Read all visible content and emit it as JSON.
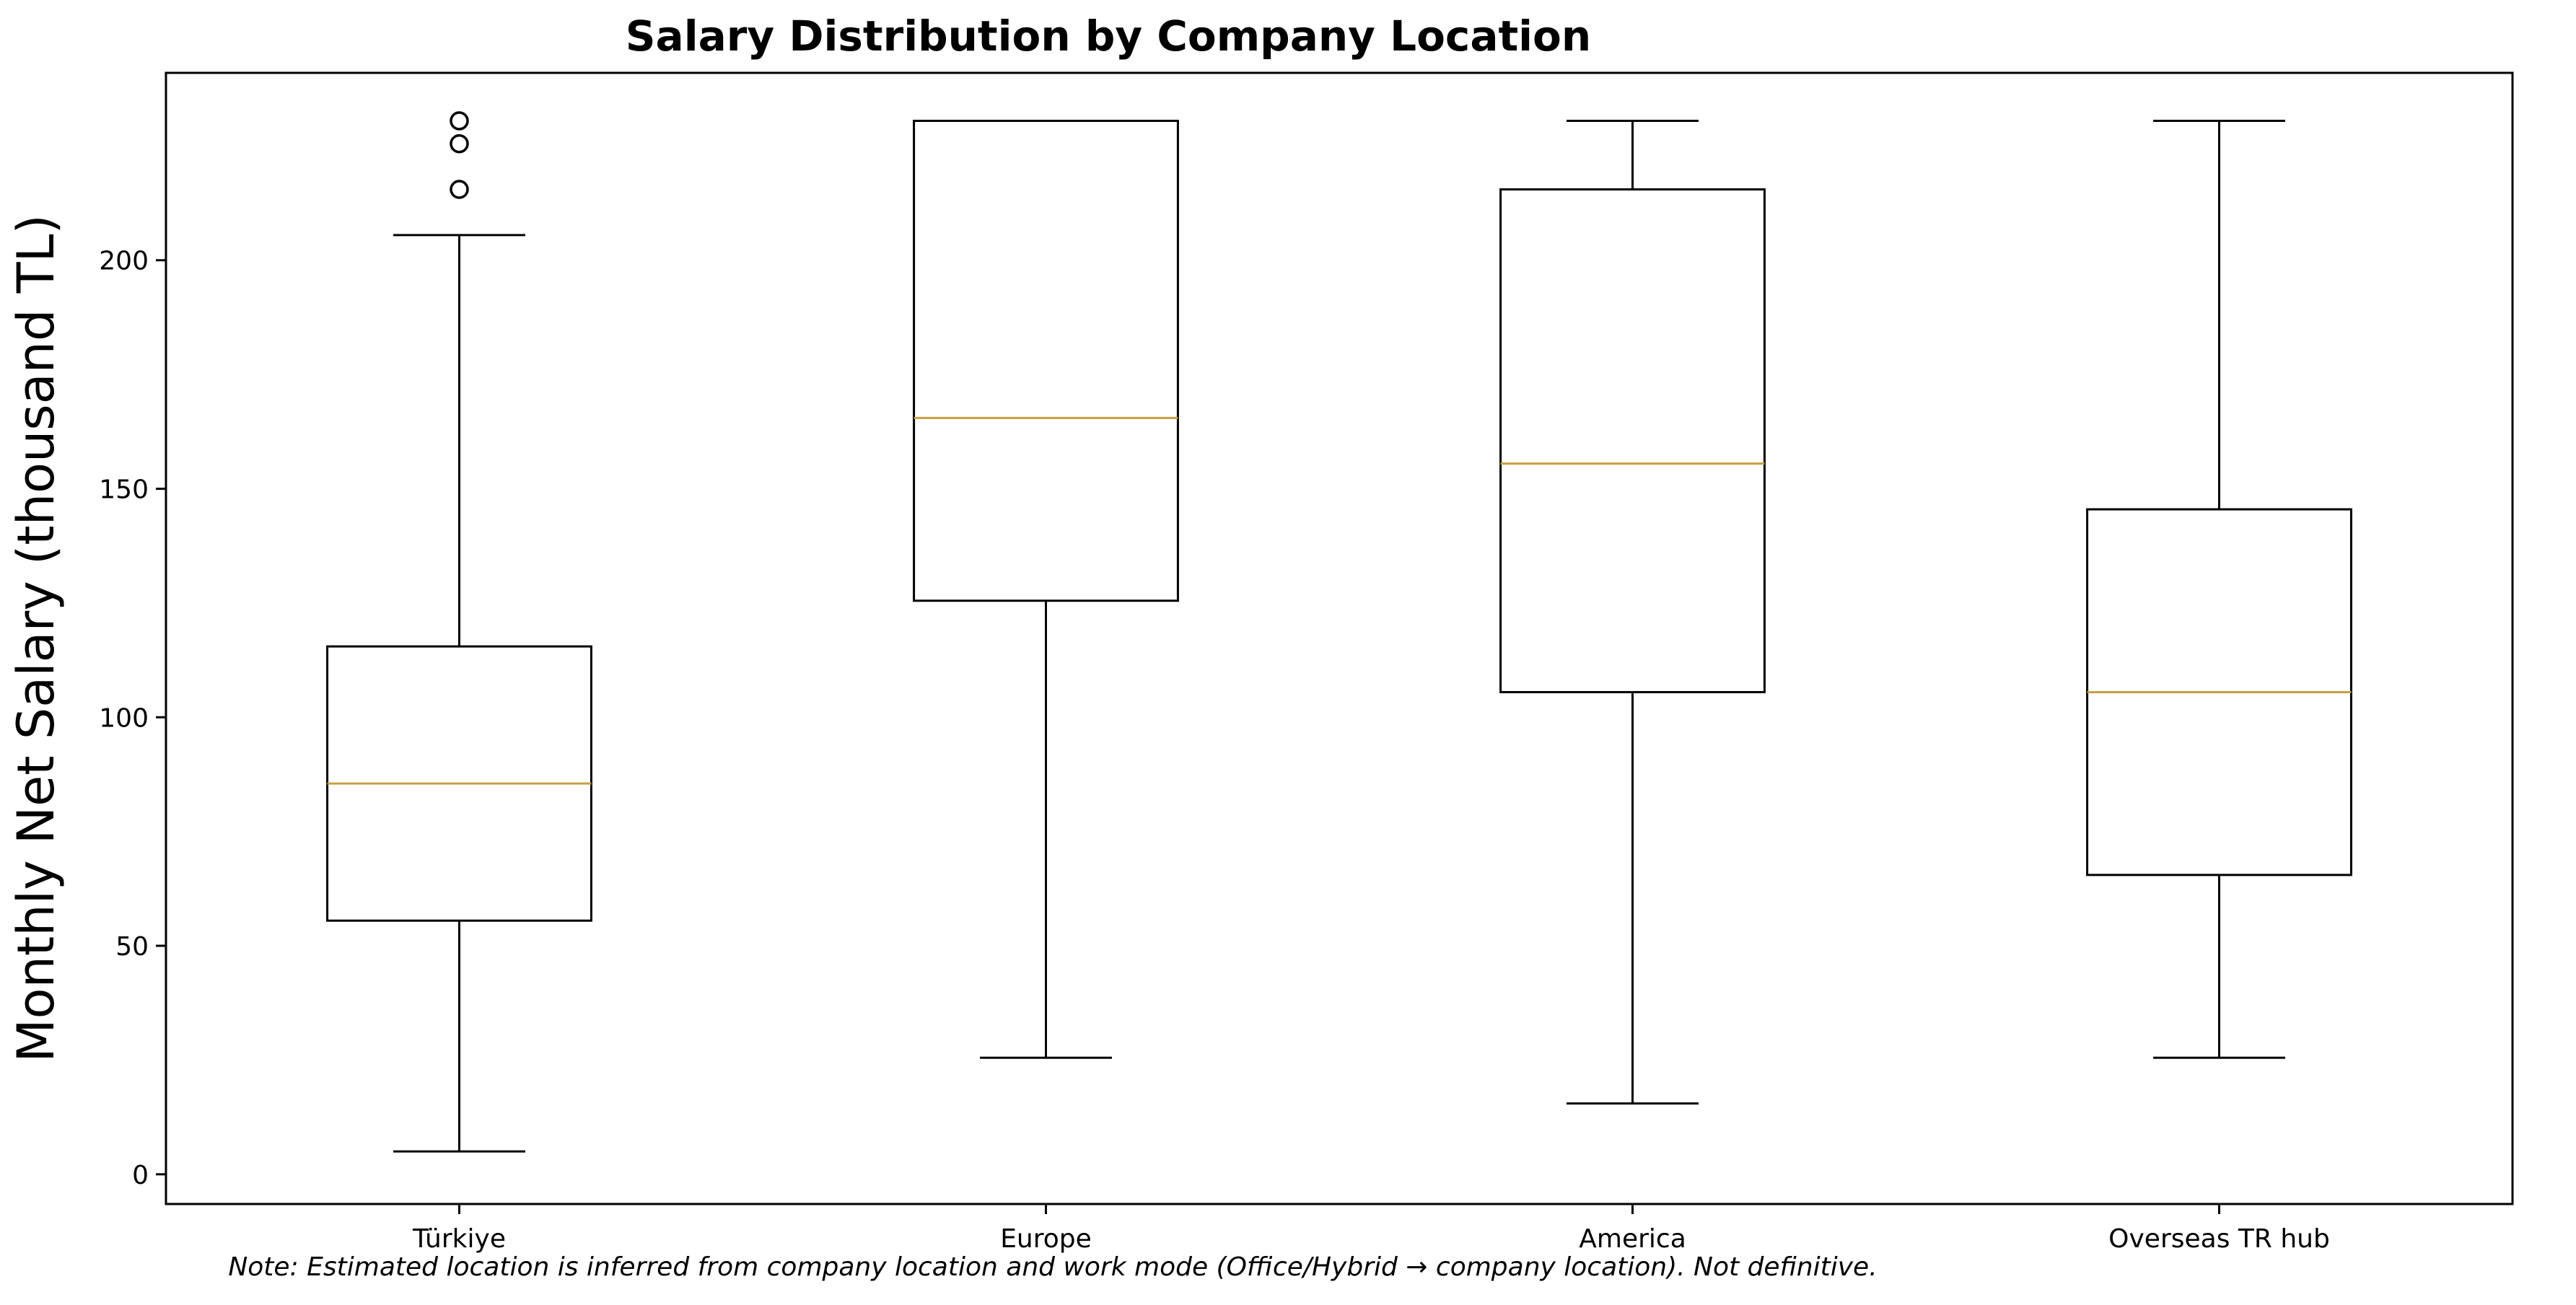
{
  "chart_data": {
    "type": "box",
    "title": "Salary Distribution by Company Location",
    "xlabel": "",
    "ylabel": "Monthly Net Salary (thousand TL)",
    "ylim": [
      -6.5,
      241
    ],
    "yticks": [
      0,
      50,
      100,
      150,
      200
    ],
    "grid": false,
    "categories": [
      "Türkiye",
      "Europe",
      "America",
      "Overseas TR hub"
    ],
    "boxes": [
      {
        "category": "Türkiye",
        "whisker_low": 5,
        "q1": 55.5,
        "median": 85.5,
        "q3": 115.5,
        "whisker_high": 205.5,
        "outliers": [
          215.5,
          225.5,
          230.5
        ]
      },
      {
        "category": "Europe",
        "whisker_low": 25.5,
        "q1": 125.5,
        "median": 165.5,
        "q3": 230.5,
        "whisker_high": 230.5,
        "outliers": []
      },
      {
        "category": "America",
        "whisker_low": 15.5,
        "q1": 105.5,
        "median": 155.5,
        "q3": 215.5,
        "whisker_high": 230.5,
        "outliers": []
      },
      {
        "category": "Overseas TR hub",
        "whisker_low": 25.5,
        "q1": 65.5,
        "median": 105.5,
        "q3": 145.5,
        "whisker_high": 230.5,
        "outliers": []
      }
    ],
    "note": "Note: Estimated location is inferred from company location and work mode (Office/Hybrid → company location). Not definitive.",
    "colors": {
      "box_edge": "#000000",
      "median": "#c8a040",
      "background": "#ffffff"
    }
  }
}
